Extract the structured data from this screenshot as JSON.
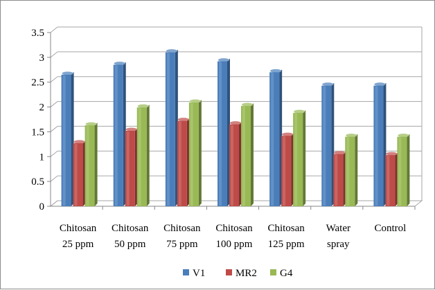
{
  "chart_data": {
    "type": "bar",
    "style": "3d-clustered-column",
    "categories": [
      [
        "Chitosan",
        "25 ppm"
      ],
      [
        "Chitosan",
        "50 ppm"
      ],
      [
        "Chitosan",
        "75 ppm"
      ],
      [
        "Chitosan",
        "100 ppm"
      ],
      [
        "Chitosan",
        "125 ppm"
      ],
      [
        "Water",
        "spray"
      ],
      [
        "Control"
      ]
    ],
    "series": [
      {
        "name": "V1",
        "color": "#4A7EBB",
        "values": [
          2.65,
          2.85,
          3.1,
          2.92,
          2.7,
          2.43,
          2.43
        ]
      },
      {
        "name": "MR2",
        "color": "#BE4B48",
        "values": [
          1.27,
          1.52,
          1.72,
          1.65,
          1.42,
          1.05,
          1.03
        ]
      },
      {
        "name": "G4",
        "color": "#98B954",
        "values": [
          1.63,
          1.99,
          2.09,
          2.02,
          1.88,
          1.4,
          1.4
        ]
      }
    ],
    "yticks": [
      "0",
      "0.5",
      "1",
      "1.5",
      "2",
      "2.5",
      "3",
      "3.5"
    ],
    "ylim": [
      0,
      3.5
    ],
    "grid": true,
    "legend_position": "bottom",
    "title": "",
    "xlabel": "",
    "ylabel": ""
  }
}
